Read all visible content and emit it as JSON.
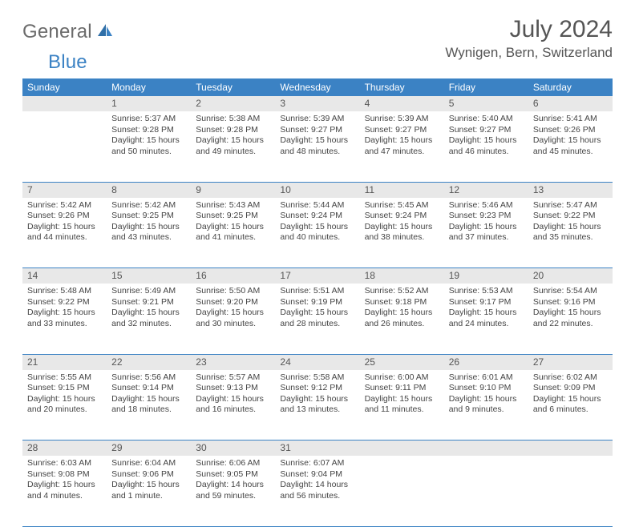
{
  "brand": {
    "part1": "General",
    "part2": "Blue"
  },
  "title": "July 2024",
  "location": "Wynigen, Bern, Switzerland",
  "day_headers": [
    "Sunday",
    "Monday",
    "Tuesday",
    "Wednesday",
    "Thursday",
    "Friday",
    "Saturday"
  ],
  "colors": {
    "header_bg": "#3b82c4",
    "header_fg": "#ffffff",
    "daynum_bg": "#e8e8e8",
    "border": "#3b82c4",
    "text": "#444444",
    "title": "#555555"
  },
  "weeks": [
    [
      null,
      {
        "n": "1",
        "sr": "Sunrise: 5:37 AM",
        "ss": "Sunset: 9:28 PM",
        "d1": "Daylight: 15 hours",
        "d2": "and 50 minutes."
      },
      {
        "n": "2",
        "sr": "Sunrise: 5:38 AM",
        "ss": "Sunset: 9:28 PM",
        "d1": "Daylight: 15 hours",
        "d2": "and 49 minutes."
      },
      {
        "n": "3",
        "sr": "Sunrise: 5:39 AM",
        "ss": "Sunset: 9:27 PM",
        "d1": "Daylight: 15 hours",
        "d2": "and 48 minutes."
      },
      {
        "n": "4",
        "sr": "Sunrise: 5:39 AM",
        "ss": "Sunset: 9:27 PM",
        "d1": "Daylight: 15 hours",
        "d2": "and 47 minutes."
      },
      {
        "n": "5",
        "sr": "Sunrise: 5:40 AM",
        "ss": "Sunset: 9:27 PM",
        "d1": "Daylight: 15 hours",
        "d2": "and 46 minutes."
      },
      {
        "n": "6",
        "sr": "Sunrise: 5:41 AM",
        "ss": "Sunset: 9:26 PM",
        "d1": "Daylight: 15 hours",
        "d2": "and 45 minutes."
      }
    ],
    [
      {
        "n": "7",
        "sr": "Sunrise: 5:42 AM",
        "ss": "Sunset: 9:26 PM",
        "d1": "Daylight: 15 hours",
        "d2": "and 44 minutes."
      },
      {
        "n": "8",
        "sr": "Sunrise: 5:42 AM",
        "ss": "Sunset: 9:25 PM",
        "d1": "Daylight: 15 hours",
        "d2": "and 43 minutes."
      },
      {
        "n": "9",
        "sr": "Sunrise: 5:43 AM",
        "ss": "Sunset: 9:25 PM",
        "d1": "Daylight: 15 hours",
        "d2": "and 41 minutes."
      },
      {
        "n": "10",
        "sr": "Sunrise: 5:44 AM",
        "ss": "Sunset: 9:24 PM",
        "d1": "Daylight: 15 hours",
        "d2": "and 40 minutes."
      },
      {
        "n": "11",
        "sr": "Sunrise: 5:45 AM",
        "ss": "Sunset: 9:24 PM",
        "d1": "Daylight: 15 hours",
        "d2": "and 38 minutes."
      },
      {
        "n": "12",
        "sr": "Sunrise: 5:46 AM",
        "ss": "Sunset: 9:23 PM",
        "d1": "Daylight: 15 hours",
        "d2": "and 37 minutes."
      },
      {
        "n": "13",
        "sr": "Sunrise: 5:47 AM",
        "ss": "Sunset: 9:22 PM",
        "d1": "Daylight: 15 hours",
        "d2": "and 35 minutes."
      }
    ],
    [
      {
        "n": "14",
        "sr": "Sunrise: 5:48 AM",
        "ss": "Sunset: 9:22 PM",
        "d1": "Daylight: 15 hours",
        "d2": "and 33 minutes."
      },
      {
        "n": "15",
        "sr": "Sunrise: 5:49 AM",
        "ss": "Sunset: 9:21 PM",
        "d1": "Daylight: 15 hours",
        "d2": "and 32 minutes."
      },
      {
        "n": "16",
        "sr": "Sunrise: 5:50 AM",
        "ss": "Sunset: 9:20 PM",
        "d1": "Daylight: 15 hours",
        "d2": "and 30 minutes."
      },
      {
        "n": "17",
        "sr": "Sunrise: 5:51 AM",
        "ss": "Sunset: 9:19 PM",
        "d1": "Daylight: 15 hours",
        "d2": "and 28 minutes."
      },
      {
        "n": "18",
        "sr": "Sunrise: 5:52 AM",
        "ss": "Sunset: 9:18 PM",
        "d1": "Daylight: 15 hours",
        "d2": "and 26 minutes."
      },
      {
        "n": "19",
        "sr": "Sunrise: 5:53 AM",
        "ss": "Sunset: 9:17 PM",
        "d1": "Daylight: 15 hours",
        "d2": "and 24 minutes."
      },
      {
        "n": "20",
        "sr": "Sunrise: 5:54 AM",
        "ss": "Sunset: 9:16 PM",
        "d1": "Daylight: 15 hours",
        "d2": "and 22 minutes."
      }
    ],
    [
      {
        "n": "21",
        "sr": "Sunrise: 5:55 AM",
        "ss": "Sunset: 9:15 PM",
        "d1": "Daylight: 15 hours",
        "d2": "and 20 minutes."
      },
      {
        "n": "22",
        "sr": "Sunrise: 5:56 AM",
        "ss": "Sunset: 9:14 PM",
        "d1": "Daylight: 15 hours",
        "d2": "and 18 minutes."
      },
      {
        "n": "23",
        "sr": "Sunrise: 5:57 AM",
        "ss": "Sunset: 9:13 PM",
        "d1": "Daylight: 15 hours",
        "d2": "and 16 minutes."
      },
      {
        "n": "24",
        "sr": "Sunrise: 5:58 AM",
        "ss": "Sunset: 9:12 PM",
        "d1": "Daylight: 15 hours",
        "d2": "and 13 minutes."
      },
      {
        "n": "25",
        "sr": "Sunrise: 6:00 AM",
        "ss": "Sunset: 9:11 PM",
        "d1": "Daylight: 15 hours",
        "d2": "and 11 minutes."
      },
      {
        "n": "26",
        "sr": "Sunrise: 6:01 AM",
        "ss": "Sunset: 9:10 PM",
        "d1": "Daylight: 15 hours",
        "d2": "and 9 minutes."
      },
      {
        "n": "27",
        "sr": "Sunrise: 6:02 AM",
        "ss": "Sunset: 9:09 PM",
        "d1": "Daylight: 15 hours",
        "d2": "and 6 minutes."
      }
    ],
    [
      {
        "n": "28",
        "sr": "Sunrise: 6:03 AM",
        "ss": "Sunset: 9:08 PM",
        "d1": "Daylight: 15 hours",
        "d2": "and 4 minutes."
      },
      {
        "n": "29",
        "sr": "Sunrise: 6:04 AM",
        "ss": "Sunset: 9:06 PM",
        "d1": "Daylight: 15 hours",
        "d2": "and 1 minute."
      },
      {
        "n": "30",
        "sr": "Sunrise: 6:06 AM",
        "ss": "Sunset: 9:05 PM",
        "d1": "Daylight: 14 hours",
        "d2": "and 59 minutes."
      },
      {
        "n": "31",
        "sr": "Sunrise: 6:07 AM",
        "ss": "Sunset: 9:04 PM",
        "d1": "Daylight: 14 hours",
        "d2": "and 56 minutes."
      },
      null,
      null,
      null
    ]
  ]
}
